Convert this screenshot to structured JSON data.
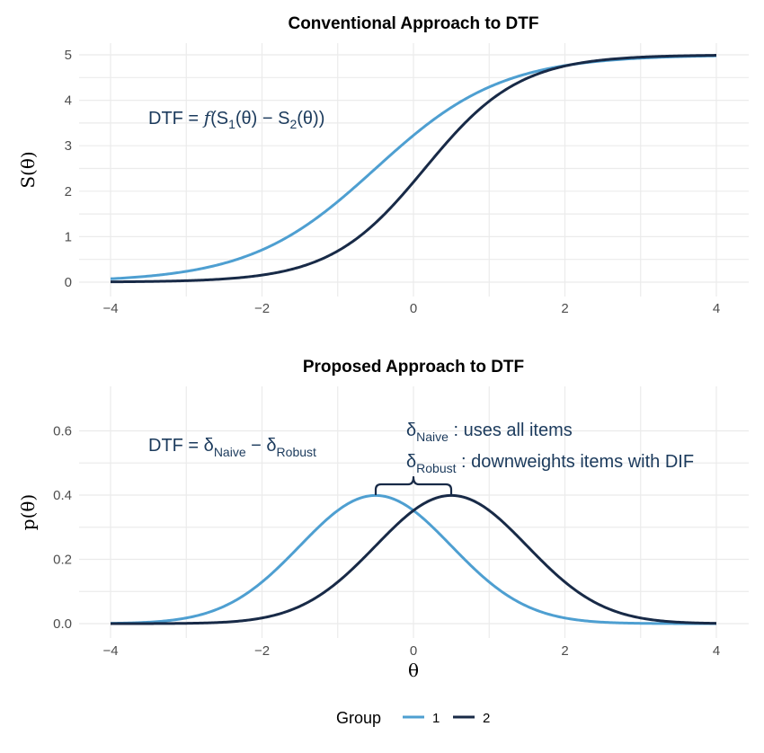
{
  "chart_data": [
    {
      "type": "line",
      "title": "Conventional Approach to DTF",
      "xlabel": "",
      "ylabel": "S(θ)",
      "xlim": [
        -4,
        4
      ],
      "ylim": [
        0,
        5
      ],
      "x_ticks": [
        "−4",
        "−2",
        "0",
        "2",
        "4"
      ],
      "y_ticks": [
        "0",
        "1",
        "2",
        "3",
        "4",
        "5"
      ],
      "series": [
        {
          "name": "1",
          "color": "#4e9fd1",
          "formula": "5/(1+exp(-1.2*(x+0.5)))"
        },
        {
          "name": "2",
          "color": "#182a47",
          "formula": "5/(1+exp(-1.6*(x-0.15)))"
        }
      ],
      "annotation": {
        "lead": "DTF = ",
        "f": "f",
        "open": "(S",
        "s1": "1",
        "mid": "(θ) − S",
        "s2": "2",
        "close": "(θ))"
      }
    },
    {
      "type": "line",
      "title": "Proposed Approach to DTF",
      "xlabel": "θ",
      "ylabel": "p(θ)",
      "xlim": [
        -4,
        4
      ],
      "ylim": [
        0,
        0.7
      ],
      "x_ticks": [
        "−4",
        "−2",
        "0",
        "2",
        "4"
      ],
      "y_ticks": [
        "0.0",
        "0.2",
        "0.4",
        "0.6"
      ],
      "series": [
        {
          "name": "1",
          "color": "#4e9fd1",
          "mean": -0.5,
          "sd": 1
        },
        {
          "name": "2",
          "color": "#182a47",
          "mean": 0.5,
          "sd": 1
        }
      ],
      "annotation": {
        "lead": "DTF = δ",
        "naive": "Naive",
        "minus": " − δ",
        "robust": "Robust"
      },
      "notes": [
        {
          "delta": "δ",
          "sub": "Naive",
          "text": " :  uses all items"
        },
        {
          "delta": "δ",
          "sub": "Robust",
          "text": " :  downweights items with DIF"
        }
      ]
    }
  ],
  "legend": {
    "title": "Group",
    "items": [
      {
        "label": "1",
        "color": "#4e9fd1"
      },
      {
        "label": "2",
        "color": "#182a47"
      }
    ]
  }
}
